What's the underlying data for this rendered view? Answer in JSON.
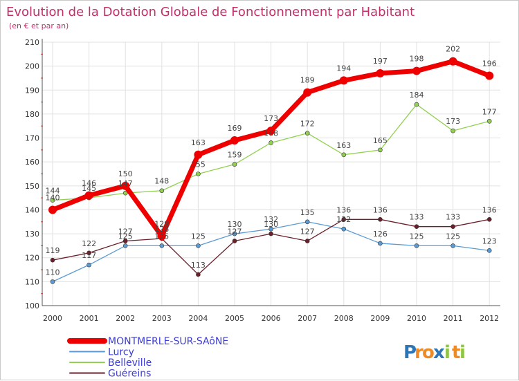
{
  "chart_data": {
    "type": "line",
    "title": "Evolution de la Dotation Globale de Fonctionnement par Habitant",
    "subtitle": "(en € et par an)",
    "xlabel": "",
    "ylabel": "",
    "ylim": [
      100,
      210
    ],
    "yticks": [
      100,
      110,
      120,
      130,
      140,
      150,
      160,
      170,
      180,
      190,
      200,
      210
    ],
    "categories": [
      "2000",
      "2001",
      "2002",
      "2003",
      "2004",
      "2005",
      "2006",
      "2007",
      "2008",
      "2009",
      "2010",
      "2011",
      "2012"
    ],
    "grid": true,
    "legend_position": "bottom-left",
    "series": [
      {
        "name": "MONTMERLE-SUR-SAôNE",
        "color": "#ee0000",
        "values": [
          140,
          146,
          150,
          129,
          163,
          169,
          173,
          189,
          194,
          197,
          198,
          202,
          196
        ]
      },
      {
        "name": "Lurcy",
        "color": "#5b9bd5",
        "values": [
          110,
          117,
          125,
          125,
          125,
          130,
          132,
          135,
          132,
          126,
          125,
          125,
          123
        ]
      },
      {
        "name": "Belleville",
        "color": "#92d050",
        "values": [
          144,
          145,
          147,
          148,
          155,
          159,
          168,
          172,
          163,
          165,
          184,
          173,
          177
        ]
      },
      {
        "name": "Guéreins",
        "color": "#6b1f2a",
        "values": [
          119,
          122,
          127,
          128,
          113,
          127,
          130,
          127,
          136,
          136,
          133,
          133,
          136
        ]
      }
    ]
  },
  "brand": {
    "name": "Proxiti",
    "letters": [
      "P",
      "r",
      "o",
      "x",
      "i",
      "t",
      "i"
    ],
    "colors": [
      "#2e75b6",
      "#f08a24",
      "#f08a24",
      "#2e75b6",
      "#8cc63f",
      "#f08a24",
      "#8cc63f"
    ]
  },
  "colors": {
    "title": "#c0306a",
    "axis": "#555555",
    "grid": "#e0e0e0",
    "legend_text": "#3b3bd6",
    "tick_text": "#333333"
  }
}
